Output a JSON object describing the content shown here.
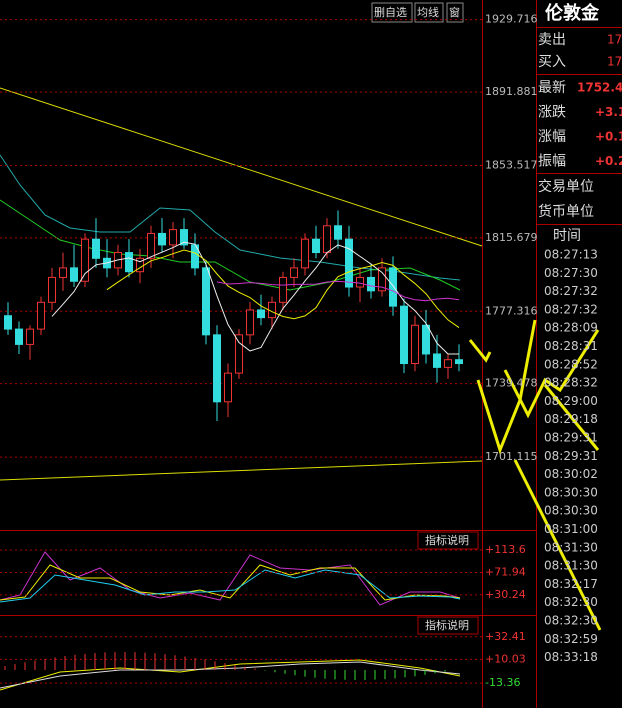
{
  "toolbar": [
    "删自选",
    "均线",
    "窗"
  ],
  "chart": {
    "type": "candlestick",
    "ylim": [
      1663,
      1940
    ],
    "yticks": [
      1929.716,
      1891.881,
      1853.517,
      1815.679,
      1777.316,
      1739.478,
      1701.115
    ],
    "candles": [
      [
        1775,
        1782,
        1765,
        1768
      ],
      [
        1768,
        1772,
        1755,
        1760
      ],
      [
        1760,
        1770,
        1752,
        1768
      ],
      [
        1768,
        1785,
        1765,
        1782
      ],
      [
        1782,
        1800,
        1778,
        1795
      ],
      [
        1795,
        1808,
        1788,
        1800
      ],
      [
        1800,
        1812,
        1790,
        1793
      ],
      [
        1793,
        1818,
        1790,
        1815
      ],
      [
        1815,
        1826,
        1800,
        1805
      ],
      [
        1805,
        1815,
        1795,
        1800
      ],
      [
        1800,
        1812,
        1796,
        1808
      ],
      [
        1808,
        1815,
        1795,
        1798
      ],
      [
        1798,
        1810,
        1792,
        1805
      ],
      [
        1805,
        1822,
        1800,
        1818
      ],
      [
        1818,
        1826,
        1808,
        1812
      ],
      [
        1812,
        1824,
        1805,
        1820
      ],
      [
        1820,
        1826,
        1810,
        1812
      ],
      [
        1812,
        1818,
        1796,
        1800
      ],
      [
        1800,
        1804,
        1760,
        1765
      ],
      [
        1765,
        1770,
        1720,
        1730
      ],
      [
        1730,
        1750,
        1722,
        1745
      ],
      [
        1745,
        1768,
        1742,
        1765
      ],
      [
        1765,
        1782,
        1760,
        1778
      ],
      [
        1778,
        1786,
        1770,
        1774
      ],
      [
        1774,
        1785,
        1768,
        1782
      ],
      [
        1782,
        1798,
        1778,
        1795
      ],
      [
        1795,
        1805,
        1790,
        1800
      ],
      [
        1800,
        1818,
        1796,
        1815
      ],
      [
        1815,
        1822,
        1805,
        1808
      ],
      [
        1808,
        1826,
        1805,
        1822
      ],
      [
        1822,
        1830,
        1810,
        1815
      ],
      [
        1815,
        1822,
        1785,
        1790
      ],
      [
        1790,
        1800,
        1782,
        1795
      ],
      [
        1795,
        1802,
        1784,
        1788
      ],
      [
        1788,
        1805,
        1785,
        1800
      ],
      [
        1800,
        1806,
        1775,
        1780
      ],
      [
        1780,
        1784,
        1745,
        1750
      ],
      [
        1750,
        1775,
        1746,
        1770
      ],
      [
        1770,
        1778,
        1750,
        1755
      ],
      [
        1755,
        1765,
        1740,
        1748
      ],
      [
        1748,
        1755,
        1742,
        1752
      ],
      [
        1752,
        1760,
        1746,
        1750
      ]
    ]
  },
  "indicator1": {
    "button": "指标说明",
    "ylim": [
      -7,
      147
    ],
    "yticks": [
      {
        "value": 113.6,
        "label": "+113.6"
      },
      {
        "value": 71.94,
        "label": "+71.94"
      },
      {
        "value": 30.24,
        "label": "+30.24"
      }
    ]
  },
  "indicator2": {
    "button": "指标说明",
    "ylim": [
      -38,
      52
    ],
    "yticks": [
      {
        "value": 32.41,
        "label": "+32.41"
      },
      {
        "value": 10.03,
        "label": "+10.03"
      },
      -13.36
    ]
  },
  "sidebar": {
    "title": "伦敦金",
    "quotes": [
      [
        "卖出",
        "17"
      ],
      [
        "买入",
        "17"
      ]
    ],
    "stats": [
      [
        "最新",
        "1752.4"
      ],
      [
        "涨跌",
        "+3.1"
      ],
      [
        "涨幅",
        "+0.1"
      ],
      [
        "振幅",
        "+0.2"
      ]
    ],
    "units": [
      "交易单位",
      "货币单位"
    ],
    "time_header": "时间",
    "times": [
      "08:27:13",
      "08:27:30",
      "08:27:32",
      "08:27:32",
      "08:28:09",
      "08:28:31",
      "08:28:52",
      "08:28:32",
      "08:29:00",
      "08:29:18",
      "08:29:31",
      "08:29:31",
      "08:30:02",
      "08:30:30",
      "08:30:30",
      "08:31:00",
      "08:31:30",
      "08:31:30",
      "08:32:17",
      "08:32:30",
      "08:32:30",
      "08:32:59",
      "08:33:18"
    ]
  }
}
